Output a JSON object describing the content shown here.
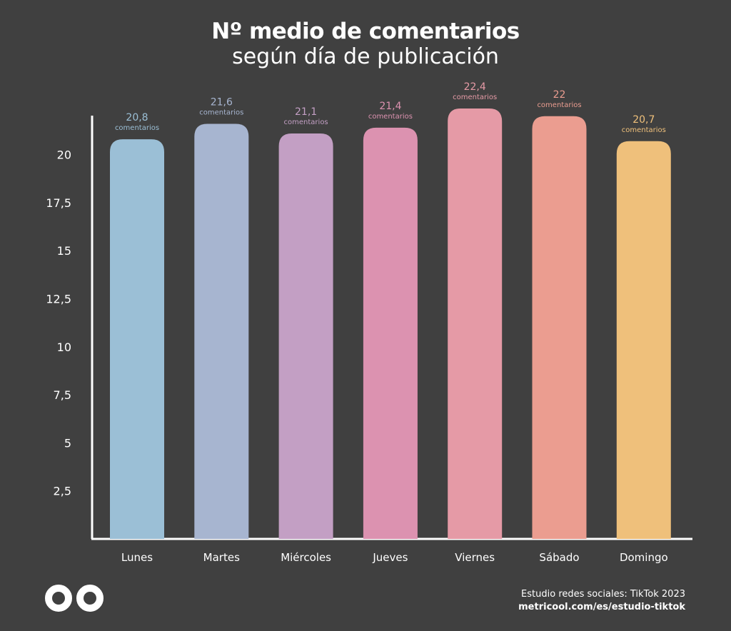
{
  "header": {
    "title": "Nº medio de comentarios",
    "subtitle": "según día de publicación"
  },
  "footer": {
    "source": "Estudio redes sociales: TikTok 2023",
    "url": "metricool.com/es/estudio-tiktok",
    "logo_icon": "metricool-infinity-logo-icon"
  },
  "chart_data": {
    "type": "bar",
    "categories": [
      "Lunes",
      "Martes",
      "Miércoles",
      "Jueves",
      "Viernes",
      "Sábado",
      "Domingo"
    ],
    "values": [
      20.8,
      21.6,
      21.1,
      21.4,
      22.4,
      22,
      20.7
    ],
    "value_labels": [
      "20,8",
      "21,6",
      "21,1",
      "21,4",
      "22,4",
      "22",
      "20,7"
    ],
    "value_unit": "comentarios",
    "yticks": [
      "2,5",
      "5",
      "7,5",
      "10",
      "12,5",
      "15",
      "17,5",
      "20"
    ],
    "ytick_values": [
      2.5,
      5,
      7.5,
      10,
      12.5,
      15,
      17.5,
      20
    ],
    "ylim": [
      0,
      22.4
    ],
    "grid": false,
    "colors": [
      "#9bbfd6",
      "#a7b5d0",
      "#c39fc4",
      "#dc92b0",
      "#e59aa6",
      "#eb9d90",
      "#efc07b"
    ],
    "label_colors": [
      "#9bbfd6",
      "#a7b5d0",
      "#c39fc4",
      "#dc92b0",
      "#e59aa6",
      "#eb9d90",
      "#efc07b"
    ]
  }
}
